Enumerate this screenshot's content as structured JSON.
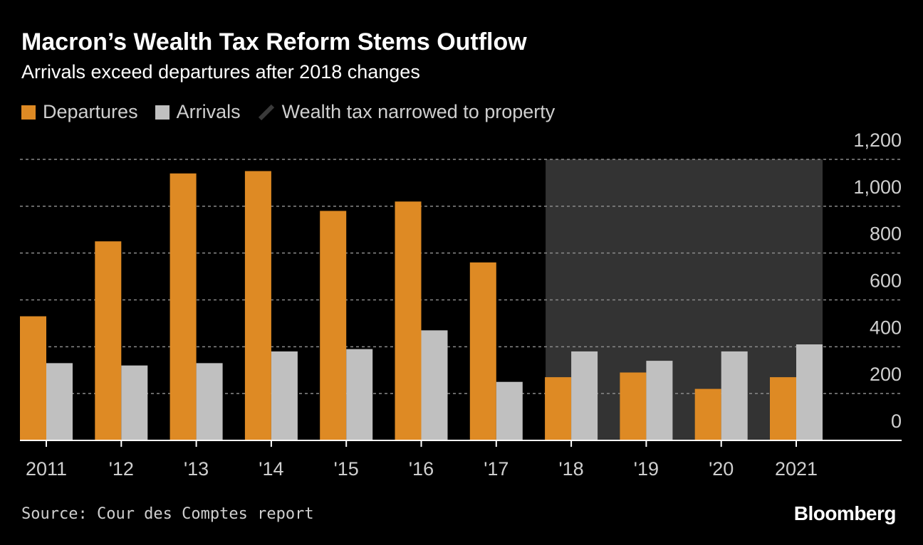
{
  "header": {
    "title": "Macron’s Wealth Tax Reform Stems Outflow",
    "subtitle": "Arrivals exceed departures after 2018 changes"
  },
  "legend": {
    "departures": "Departures",
    "arrivals": "Arrivals",
    "shade": "Wealth tax narrowed to property"
  },
  "colors": {
    "departures": "#DE8A24",
    "arrivals": "#C0C0C0",
    "shade": "#333333",
    "background": "#000000"
  },
  "chart_data": {
    "type": "bar",
    "categories": [
      "2011",
      "'12",
      "'13",
      "'14",
      "'15",
      "'16",
      "'17",
      "'18",
      "'19",
      "'20",
      "2021"
    ],
    "series": [
      {
        "name": "Departures",
        "values": [
          530,
          850,
          1140,
          1150,
          980,
          1020,
          760,
          270,
          290,
          220,
          270
        ]
      },
      {
        "name": "Arrivals",
        "values": [
          330,
          320,
          330,
          380,
          390,
          470,
          250,
          380,
          340,
          380,
          410
        ]
      }
    ],
    "ylim": [
      0,
      1200
    ],
    "yticks": [
      "0",
      "200",
      "400",
      "600",
      "800",
      "1,000",
      "1,200"
    ],
    "yaxis_position": "right",
    "shaded_region": {
      "from": "'18",
      "to": "2021",
      "label": "Wealth tax narrowed to property"
    },
    "grid": true
  },
  "footer": {
    "source": "Source: Cour des Comptes report",
    "brand": "Bloomberg"
  }
}
